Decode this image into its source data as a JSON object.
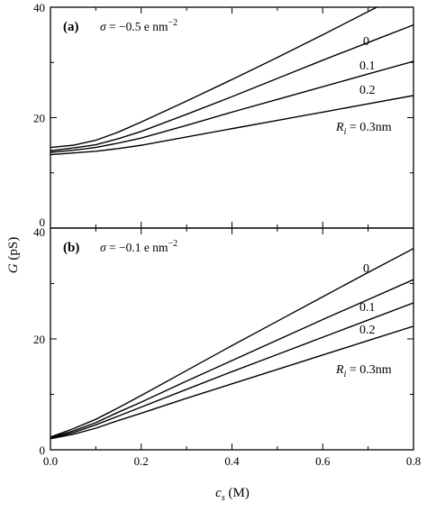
{
  "shared": {
    "xlabel_symbol": "c",
    "xlabel_sub": "s",
    "xlabel_unit": " (M)",
    "ylabel_symbol": "G",
    "ylabel_unit": " (pS)",
    "x_tick_labels": [
      "0.0",
      "0.2",
      "0.4",
      "0.6",
      "0.8"
    ]
  },
  "chart_data": [
    {
      "type": "line",
      "panel_label": "(a)",
      "sigma_symbol": "σ",
      "sigma_value": " = −0.5 e nm",
      "sigma_exp": "−2",
      "xlim": [
        0,
        0.8
      ],
      "ylim": [
        0,
        40
      ],
      "y_tick_labels": [
        "0",
        "20",
        "40"
      ],
      "grid": false,
      "x": [
        0.0,
        0.05,
        0.1,
        0.15,
        0.2,
        0.3,
        0.4,
        0.5,
        0.6,
        0.7,
        0.8
      ],
      "series": [
        {
          "label": "0",
          "values": [
            14.6,
            15.0,
            15.9,
            17.4,
            19.2,
            23.0,
            26.9,
            30.9,
            35.0,
            39.2,
            43.4
          ]
        },
        {
          "label": "0.1",
          "values": [
            14.0,
            14.5,
            15.1,
            16.2,
            17.5,
            20.6,
            23.8,
            27.1,
            30.4,
            33.6,
            36.8
          ]
        },
        {
          "label": "0.2",
          "values": [
            13.7,
            14.1,
            14.6,
            15.4,
            16.3,
            18.6,
            21.0,
            23.3,
            25.6,
            27.9,
            30.2
          ]
        },
        {
          "label": "R_i = 0.3nm",
          "values": [
            13.3,
            13.6,
            13.9,
            14.4,
            15.0,
            16.5,
            18.0,
            19.5,
            21.0,
            22.5,
            24.0
          ]
        }
      ],
      "series_label_prefix": "R",
      "series_label_sub": "i",
      "series_label_tail": " = 0.3nm"
    },
    {
      "type": "line",
      "panel_label": "(b)",
      "sigma_symbol": "σ",
      "sigma_value": " = −0.1 e nm",
      "sigma_exp": "−2",
      "xlim": [
        0,
        0.8
      ],
      "ylim": [
        0,
        40
      ],
      "y_tick_labels": [
        "0",
        "20",
        "40"
      ],
      "grid": false,
      "x": [
        0.0,
        0.05,
        0.1,
        0.15,
        0.2,
        0.3,
        0.4,
        0.5,
        0.6,
        0.7,
        0.8
      ],
      "series": [
        {
          "label": "0",
          "values": [
            2.3,
            3.8,
            5.5,
            7.6,
            9.8,
            14.3,
            18.8,
            23.2,
            27.6,
            32.0,
            36.3
          ]
        },
        {
          "label": "0.1",
          "values": [
            2.2,
            3.4,
            4.9,
            6.8,
            8.6,
            12.4,
            16.1,
            19.8,
            23.5,
            27.1,
            30.7
          ]
        },
        {
          "label": "0.2",
          "values": [
            2.1,
            3.1,
            4.5,
            6.1,
            7.7,
            10.9,
            14.1,
            17.2,
            20.3,
            23.4,
            26.5
          ]
        },
        {
          "label": "R_i = 0.3nm",
          "values": [
            2.0,
            2.8,
            3.9,
            5.3,
            6.6,
            9.3,
            11.9,
            14.5,
            17.1,
            19.7,
            22.3
          ]
        }
      ],
      "series_label_prefix": "R",
      "series_label_sub": "i",
      "series_label_tail": " = 0.3nm"
    }
  ]
}
